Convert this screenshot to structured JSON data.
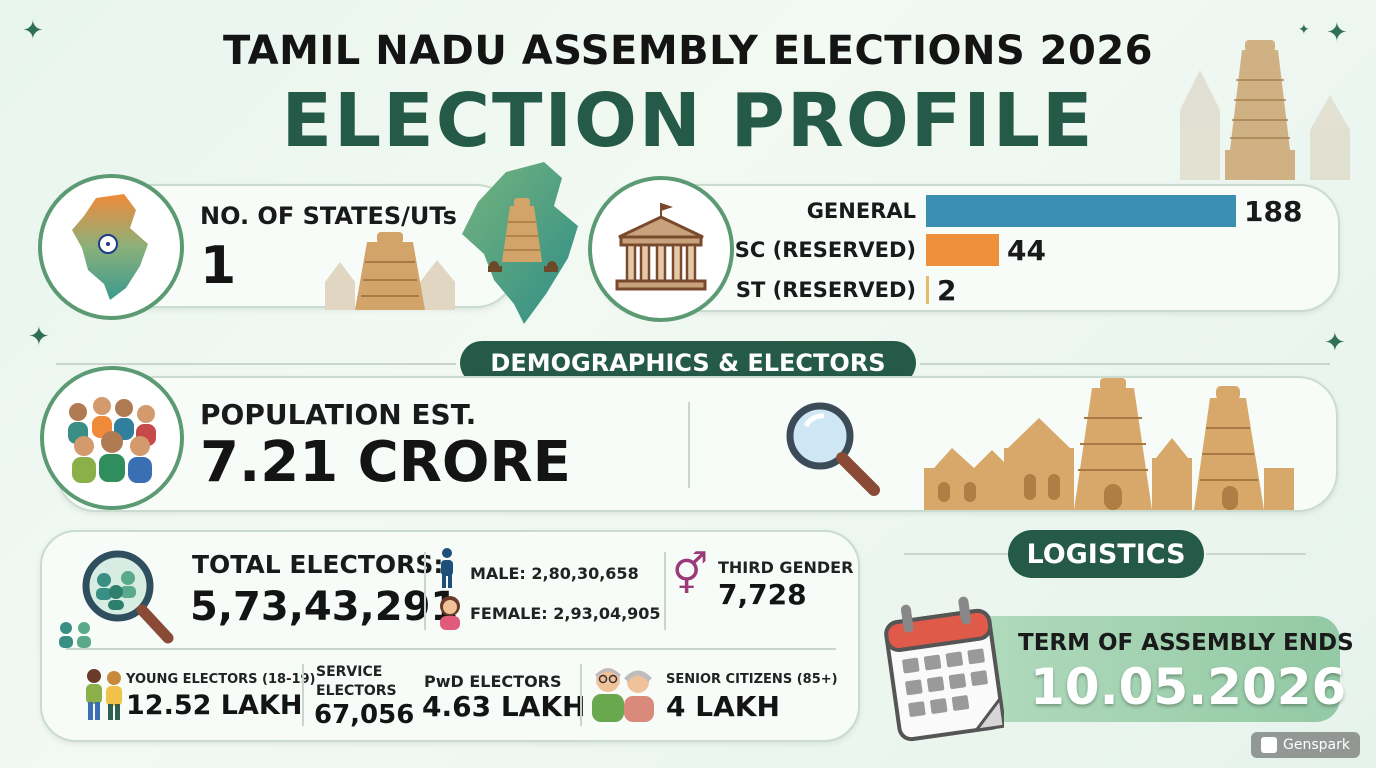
{
  "header": {
    "title": "TAMIL NADU ASSEMBLY ELECTIONS 2026",
    "subtitle": "ELECTION PROFILE"
  },
  "states": {
    "label": "NO. OF STATES/UTs",
    "value": "1"
  },
  "seats": {
    "categories": [
      "GENERAL",
      "SC (RESERVED)",
      "ST (RESERVED)"
    ],
    "values": [
      188,
      44,
      2
    ],
    "colors": [
      "#3a8fb3",
      "#ee8f3a",
      "#e9b96e"
    ]
  },
  "demographics": {
    "pill": "DEMOGRAPHICS & ELECTORS",
    "population_label": "POPULATION EST.",
    "population_value": "7.21 CRORE"
  },
  "electors": {
    "total_label": "TOTAL ELECTORS:",
    "total_value": "5,73,43,291",
    "male": "MALE: 2,80,30,658",
    "female": "FEMALE: 2,93,04,905",
    "third_label": "THIRD GENDER",
    "third_value": "7,728",
    "young_label": "YOUNG ELECTORS (18-19)",
    "young_value": "12.52 LAKH",
    "service_label_1": "SERVICE",
    "service_label_2": "ELECTORS",
    "service_value": "67,056",
    "pwd_label": "PwD ELECTORS",
    "pwd_value": "4.63 LAKH",
    "senior_label": "SENIOR CITIZENS (85+)",
    "senior_value": "4 LAKH"
  },
  "logistics": {
    "pill": "LOGISTICS",
    "term_label": "TERM OF ASSEMBLY ENDS",
    "term_value": "10.05.2026"
  },
  "watermark": "Genspark"
}
